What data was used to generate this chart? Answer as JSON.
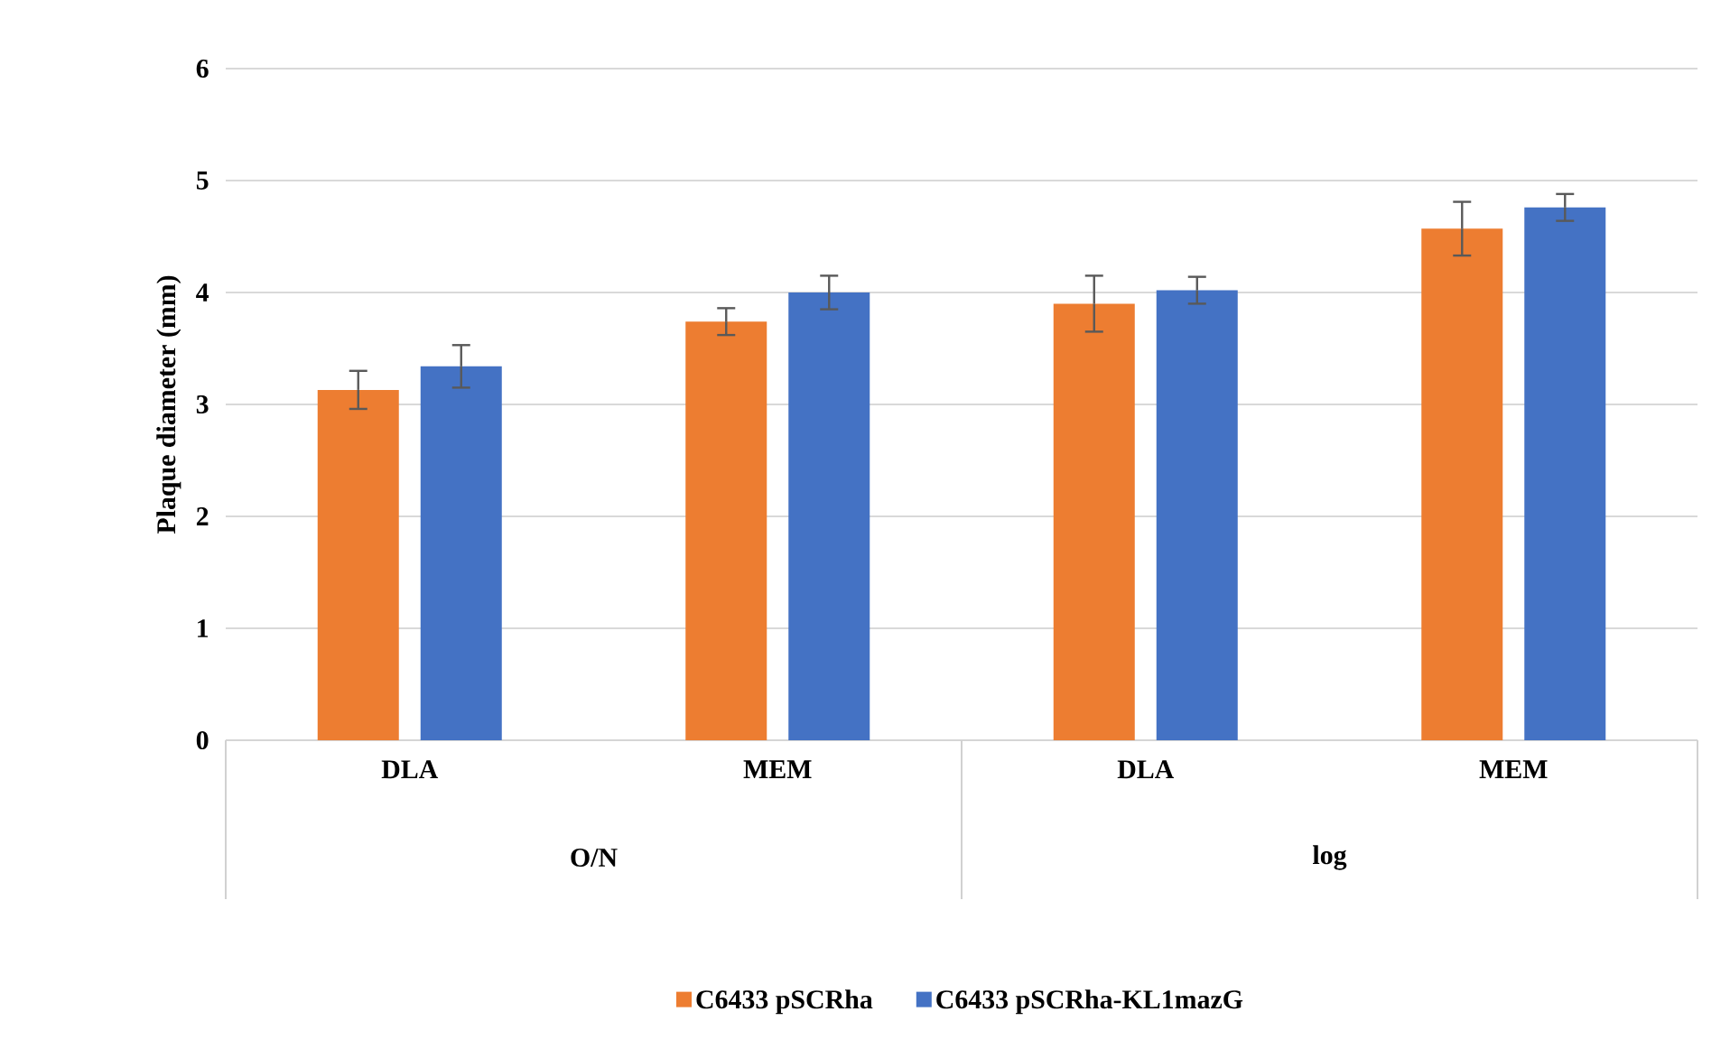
{
  "chart_data": {
    "type": "bar",
    "ylabel": "Plaque diameter (mm)",
    "categories": [
      "DLA",
      "MEM",
      "DLA",
      "MEM"
    ],
    "annotations": [
      "O/N",
      "log"
    ],
    "series": [
      {
        "name": "C6433 pSCRha",
        "color": "#ed7d31",
        "values": [
          3.13,
          3.74,
          3.9,
          4.57
        ],
        "errors": [
          0.17,
          0.12,
          0.25,
          0.24
        ]
      },
      {
        "name": "C6433 pSCRha-KL1mazG",
        "color": "#4472c4",
        "values": [
          3.34,
          4.0,
          4.02,
          4.76
        ],
        "errors": [
          0.19,
          0.15,
          0.12,
          0.12
        ]
      }
    ],
    "ylim": [
      0,
      6
    ],
    "yticks": [
      0,
      1,
      2,
      3,
      4,
      5,
      6
    ],
    "grid": "y",
    "legend": "bottom"
  }
}
